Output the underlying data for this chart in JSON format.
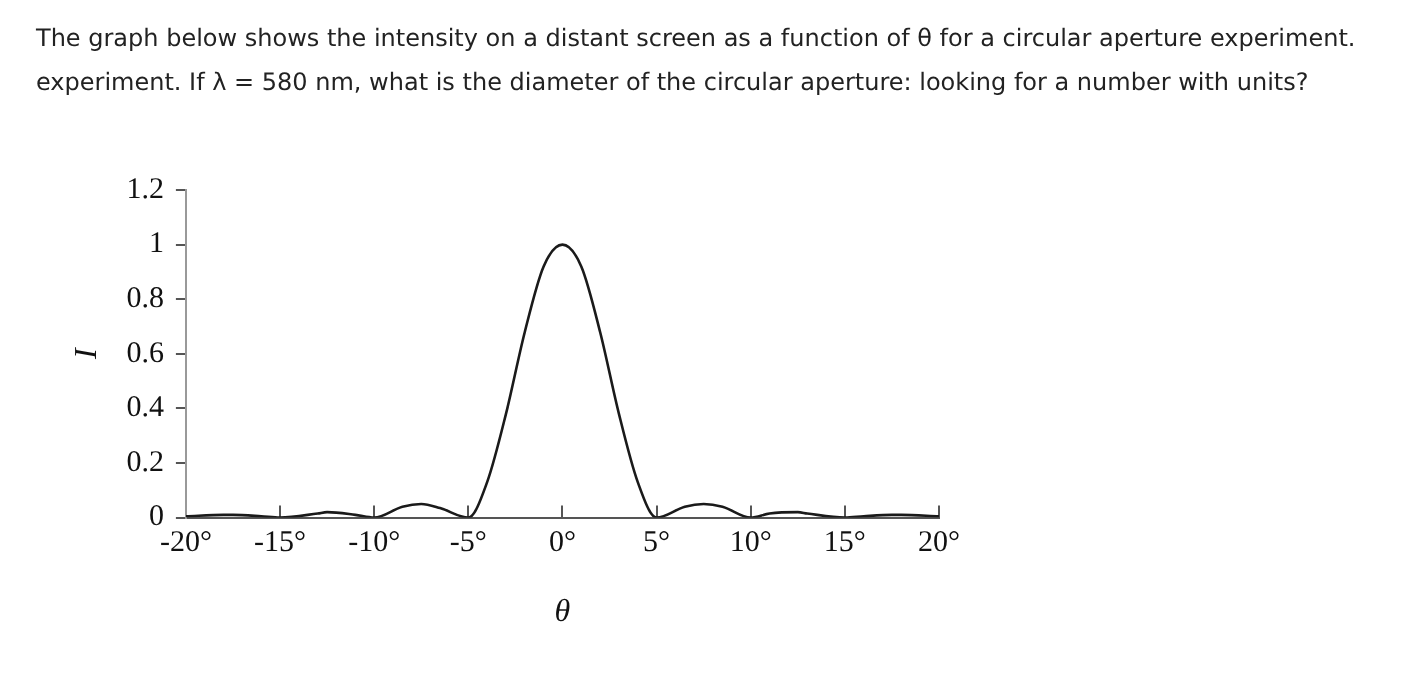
{
  "chart_data": {
    "type": "line",
    "title": "The graph below shows the intensity on a distant screen as a function of θ for a circular aperture experiment.",
    "subtitle": "experiment. If λ = 580 nm, what is the diameter of the circular aperture: looking for a number with units?",
    "xlabel": "θ",
    "ylabel": "I",
    "x": [
      -20,
      -18,
      -17.5,
      -16,
      -15,
      -13,
      -12.5,
      -11,
      -10,
      -8.5,
      -7.5,
      -6.5,
      -5,
      -4,
      -3,
      -2,
      -1,
      0,
      1,
      2,
      3,
      4,
      5,
      6.5,
      7.5,
      8.5,
      10,
      11,
      12.5,
      13,
      15,
      16,
      17.5,
      18,
      20
    ],
    "series": [
      {
        "color": "#1a1a1a",
        "values": [
          0.005,
          0.01,
          0.01,
          0.005,
          0,
          0.015,
          0.02,
          0.01,
          0,
          0.04,
          0.05,
          0.035,
          0,
          0.13,
          0.38,
          0.68,
          0.92,
          1,
          0.92,
          0.68,
          0.38,
          0.13,
          0,
          0.04,
          0.05,
          0.04,
          0,
          0.015,
          0.02,
          0.015,
          0,
          0.005,
          0.01,
          0.01,
          0.005
        ]
      }
    ],
    "xlim": [
      -20,
      20
    ],
    "xticks": [
      {
        "value": -20,
        "label": "-20°"
      },
      {
        "value": -15,
        "label": "-15°"
      },
      {
        "value": -10,
        "label": "-10°"
      },
      {
        "value": -5,
        "label": "-5°"
      },
      {
        "value": 0,
        "label": "0°"
      },
      {
        "value": 5,
        "label": "5°"
      },
      {
        "value": 10,
        "label": "10°"
      },
      {
        "value": 15,
        "label": "15°"
      },
      {
        "value": 20,
        "label": "20°"
      }
    ],
    "ylim": [
      0,
      1.2
    ],
    "yticks": [
      0,
      0.2,
      0.4,
      0.6,
      0.8,
      1,
      1.2
    ],
    "grid": false,
    "legend": false,
    "marker": "none",
    "line_style": "solid"
  }
}
